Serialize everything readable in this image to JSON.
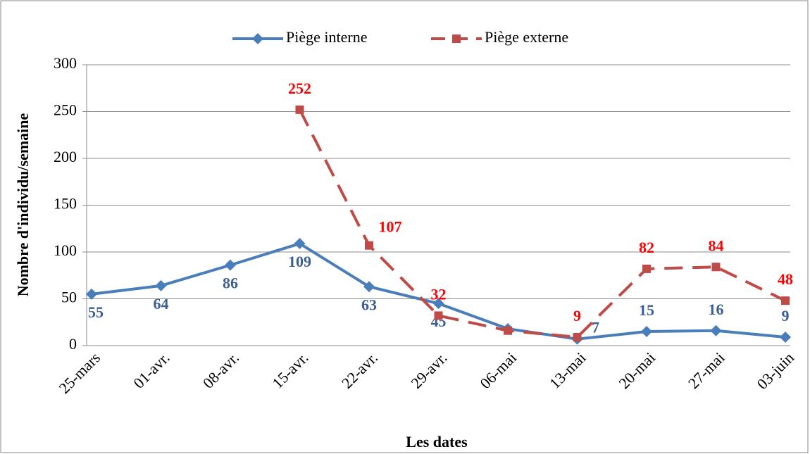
{
  "chart_data": {
    "type": "line",
    "x_label": "Les dates",
    "y_label": "Nombre d'individu/semaine",
    "categories": [
      "25-mars",
      "01-avr.",
      "08-avr.",
      "15-avr.",
      "22-avr.",
      "29-avr.",
      "06-mai",
      "13-mai",
      "20-mai",
      "27-mai",
      "03-juin"
    ],
    "series": [
      {
        "name": "Piège interne",
        "color": "#4a7ebb",
        "label_color": "#3b5f94",
        "marker": "diamond",
        "dash": false,
        "values": [
          55,
          64,
          86,
          109,
          63,
          45,
          18,
          7,
          15,
          16,
          9
        ],
        "value_labels": [
          "55",
          "64",
          "86",
          "109",
          "63",
          "45",
          null,
          "7",
          "15",
          "16",
          "9"
        ]
      },
      {
        "name": "Piège externe",
        "color": "#be4b48",
        "label_color": "#ff0000",
        "marker": "square",
        "dash": true,
        "values": [
          null,
          null,
          null,
          252,
          107,
          32,
          16,
          9,
          82,
          84,
          48
        ],
        "value_labels": [
          null,
          null,
          null,
          "252",
          "107",
          "32",
          null,
          "9",
          "82",
          "84",
          "48"
        ]
      }
    ],
    "ylim": [
      0,
      300
    ],
    "yticks": [
      0,
      50,
      100,
      150,
      200,
      250,
      300
    ],
    "grid": true,
    "legend": "top"
  }
}
